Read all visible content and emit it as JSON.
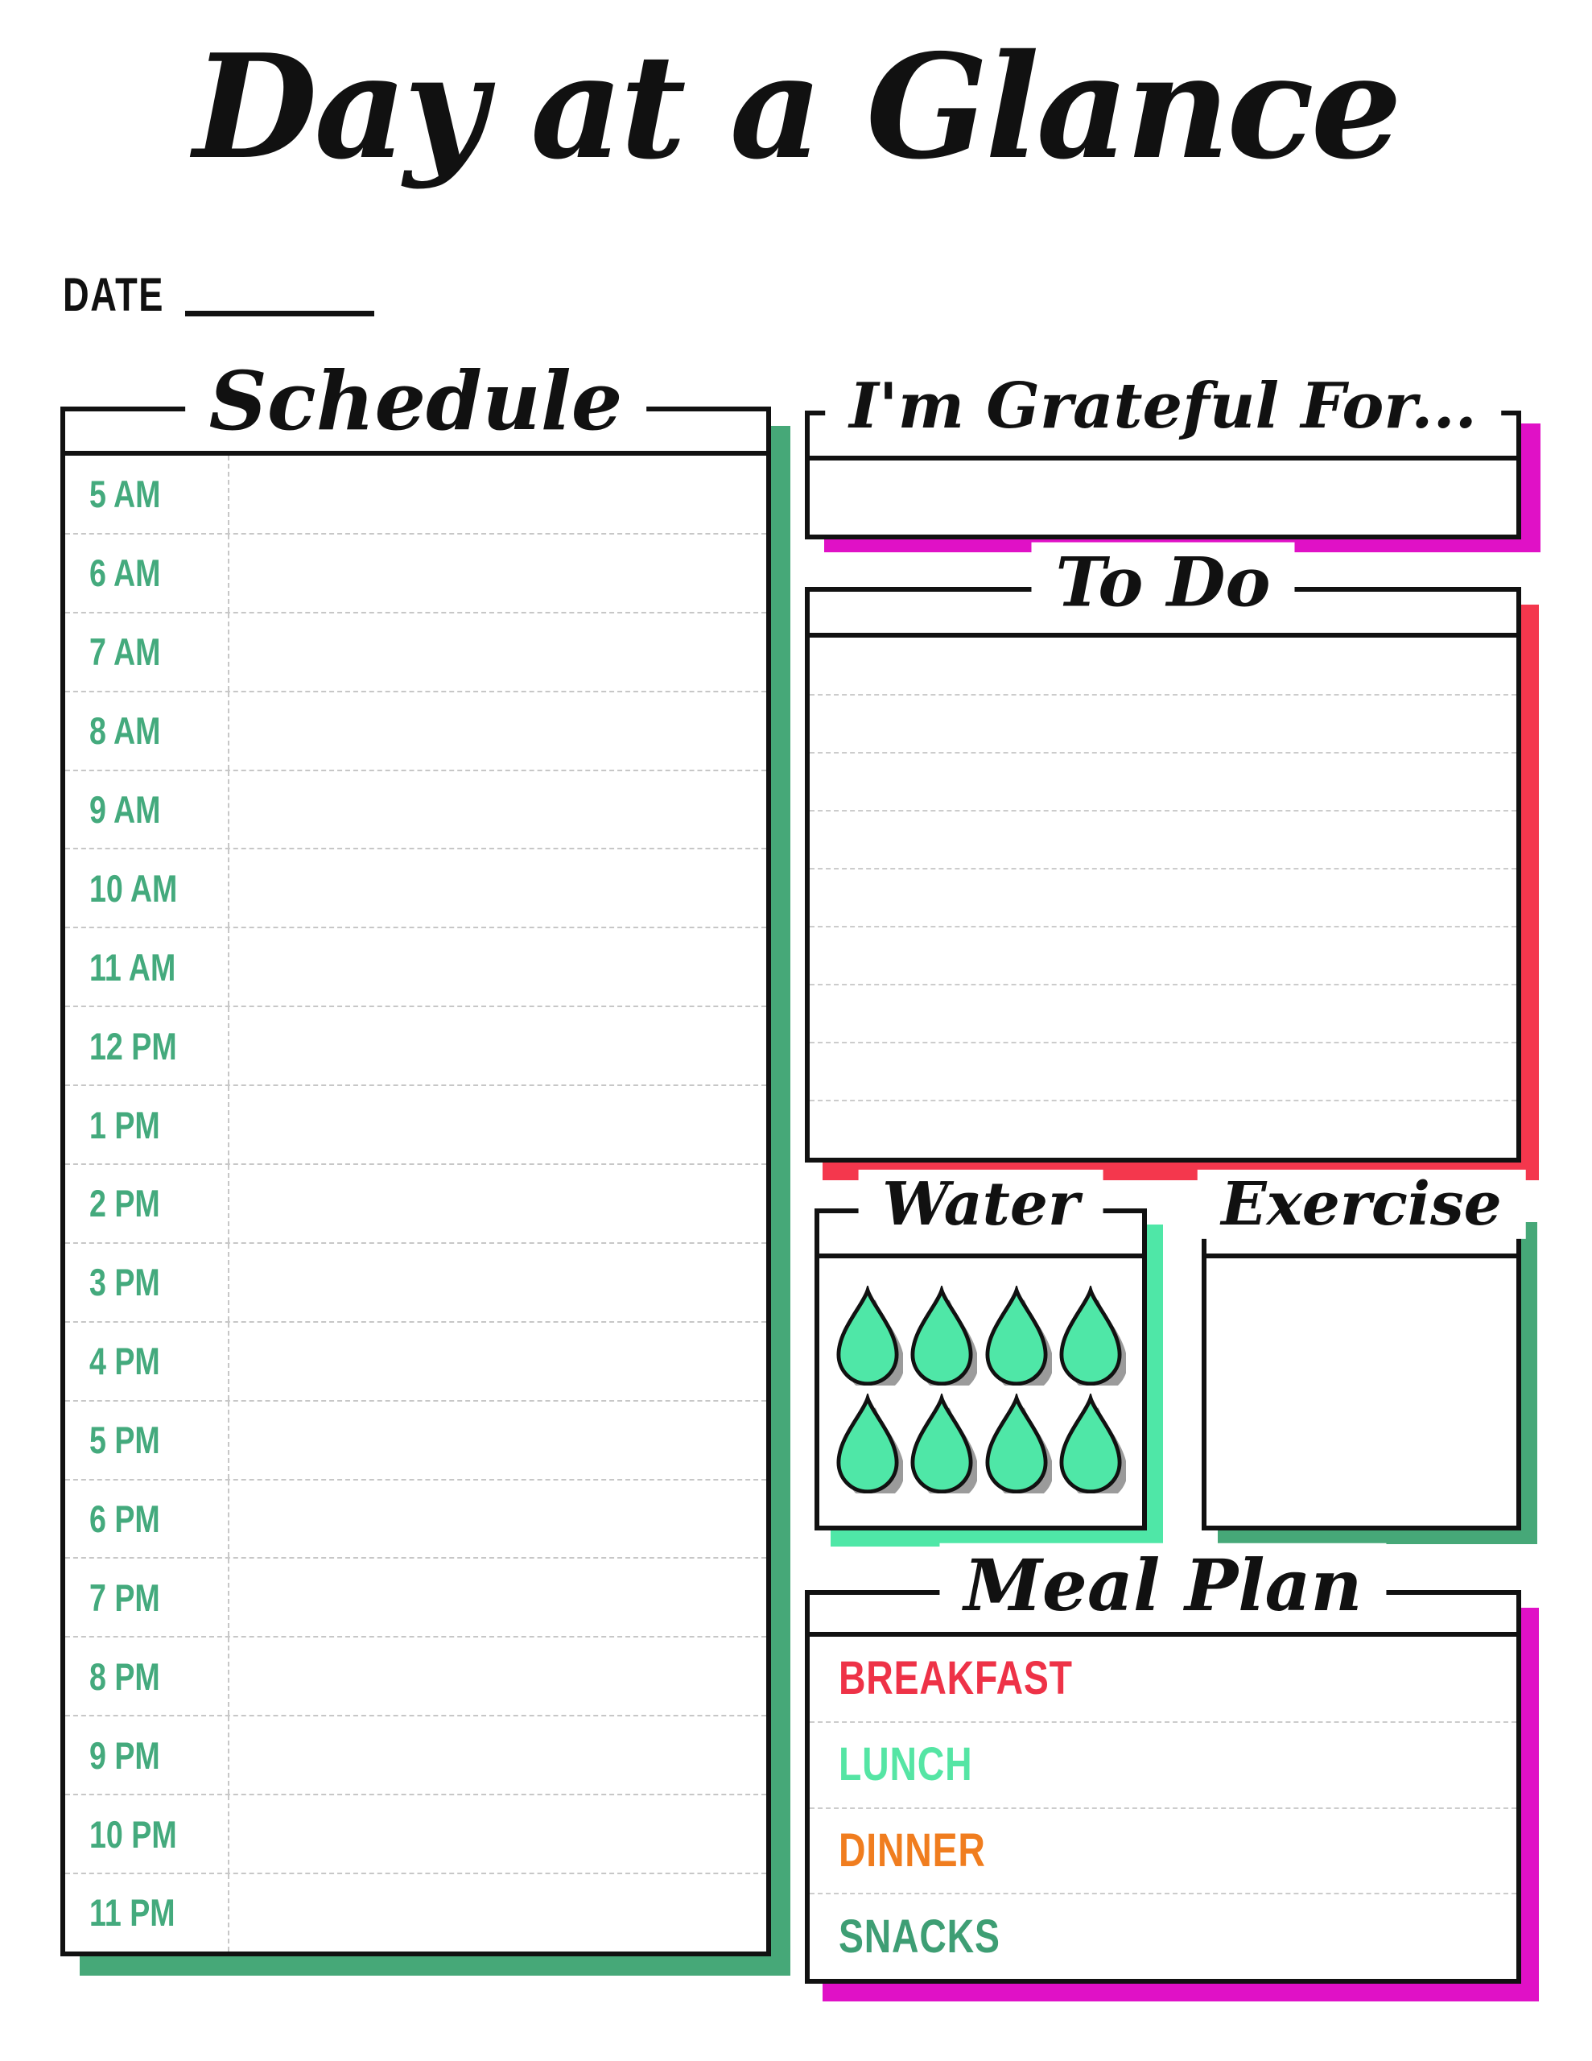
{
  "page": {
    "title": "Day at a Glance",
    "date_label": "DATE"
  },
  "schedule": {
    "title": "Schedule",
    "times": [
      "5 AM",
      "6 AM",
      "7 AM",
      "8 AM",
      "9 AM",
      "10 AM",
      "11 AM",
      "12 PM",
      "1 PM",
      "2 PM",
      "3 PM",
      "4 PM",
      "5 PM",
      "6 PM",
      "7 PM",
      "8 PM",
      "9 PM",
      "10 PM",
      "11 PM"
    ]
  },
  "grateful": {
    "title": "I'm Grateful For..."
  },
  "todo": {
    "title": "To Do",
    "line_rows": 9
  },
  "water": {
    "title": "Water",
    "drop_count": 8
  },
  "exercise": {
    "title": "Exercise"
  },
  "meal_plan": {
    "title": "Meal Plan",
    "rows": [
      {
        "label": "BREAKFAST",
        "color": "#EE3247"
      },
      {
        "label": "LUNCH",
        "color": "#55E5A4"
      },
      {
        "label": "DINNER",
        "color": "#F07D1F"
      },
      {
        "label": "SNACKS",
        "color": "#3E9E74"
      }
    ]
  },
  "colors": {
    "ink": "#111111",
    "time_text": "#44AA7D",
    "schedule_shadow": "#46A878",
    "grateful_shadow": "#E011C6",
    "todo_shadow": "#F4374D",
    "water_shadow": "#4FE7A7",
    "exercise_shadow": "#46A878",
    "meal_shadow": "#E011C6",
    "drop_fill": "#4FE7A7",
    "drop_outline": "#111111",
    "drop_shadow": "#9B9B9B"
  }
}
